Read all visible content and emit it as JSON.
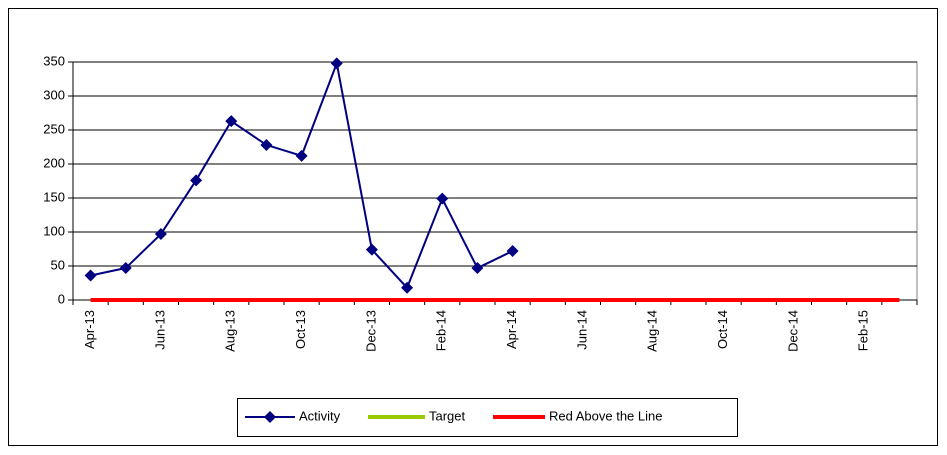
{
  "chart_data": {
    "type": "line",
    "categories": [
      "Apr-13",
      null,
      "Jun-13",
      null,
      "Aug-13",
      null,
      "Oct-13",
      null,
      "Dec-13",
      null,
      "Feb-14",
      null,
      "Apr-14",
      null,
      "Jun-14",
      null,
      "Aug-14",
      null,
      "Oct-14",
      null,
      "Dec-14",
      null,
      "Feb-15",
      null
    ],
    "series": [
      {
        "name": "Activity",
        "color": "#000080",
        "values": [
          36,
          47,
          97,
          176,
          263,
          228,
          212,
          348,
          74,
          18,
          149,
          47,
          72,
          null,
          null,
          null,
          null,
          null,
          null,
          null,
          null,
          null,
          null,
          null
        ]
      },
      {
        "name": "Target",
        "color": "#99cc00",
        "values": [
          0,
          0,
          0,
          0,
          0,
          0,
          0,
          0,
          0,
          0,
          0,
          0,
          0,
          0,
          0,
          0,
          0,
          0,
          0,
          0,
          0,
          0,
          0,
          0
        ]
      },
      {
        "name": "Red Above the Line",
        "color": "#ff0000",
        "values": [
          0,
          0,
          0,
          0,
          0,
          0,
          0,
          0,
          0,
          0,
          0,
          0,
          0,
          0,
          0,
          0,
          0,
          0,
          0,
          0,
          0,
          0,
          0,
          0
        ]
      }
    ],
    "ylim": [
      0,
      350
    ],
    "yticks": [
      0,
      50,
      100,
      150,
      200,
      250,
      300,
      350
    ],
    "grid": true,
    "legend": "bottom"
  }
}
